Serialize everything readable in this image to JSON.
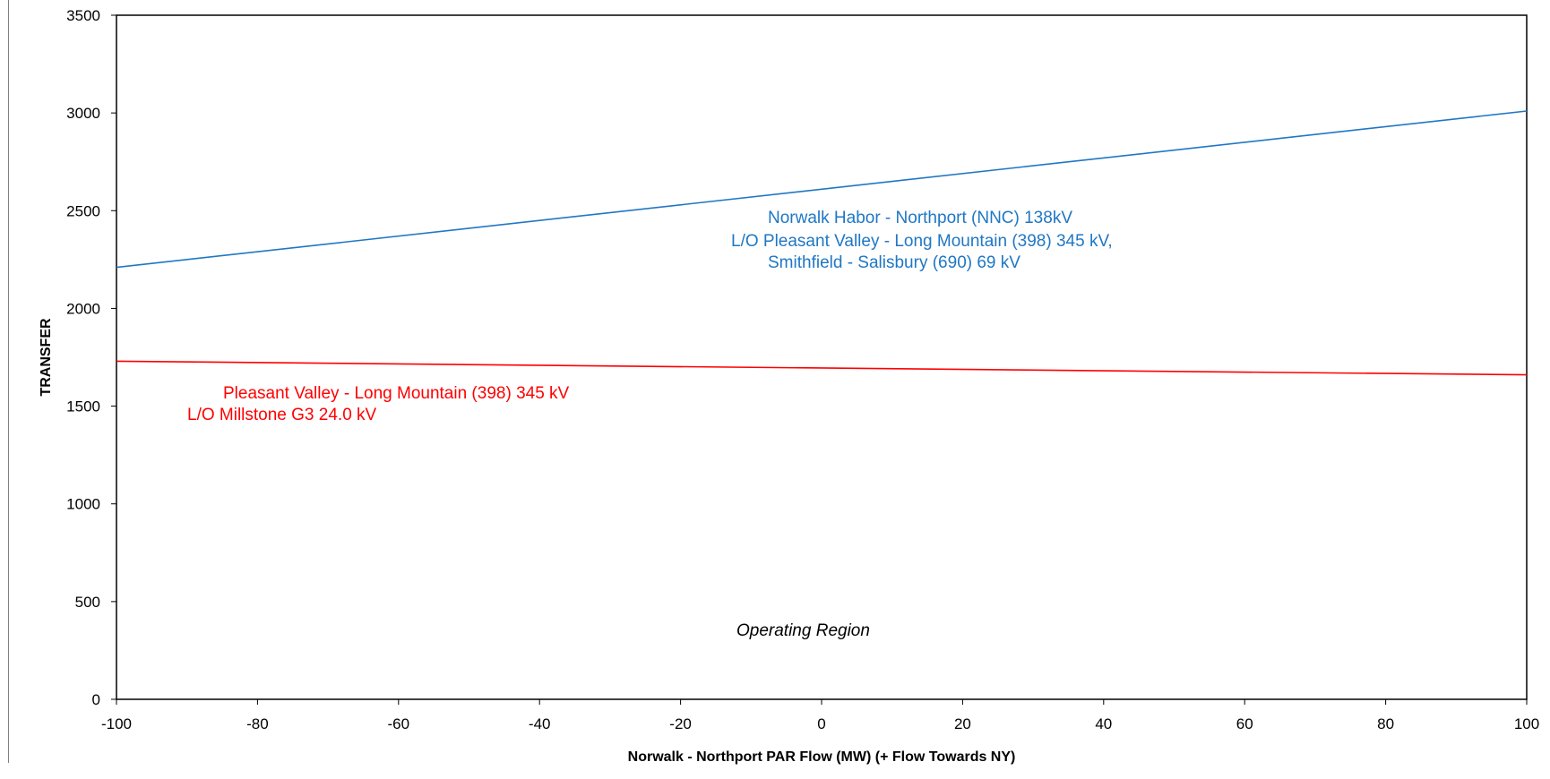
{
  "chart_data": {
    "type": "line",
    "title": "",
    "xlabel": "Norwalk - Northport PAR Flow (MW) (+ Flow Towards NY)",
    "ylabel": "TRANSFER",
    "xlim": [
      -100,
      100
    ],
    "ylim": [
      0,
      3500
    ],
    "xticks": [
      "-100",
      "-80",
      "-60",
      "-40",
      "-20",
      "0",
      "20",
      "40",
      "60",
      "80",
      "100"
    ],
    "yticks": [
      "0",
      "500",
      "1000",
      "1500",
      "2000",
      "2500",
      "3000",
      "3500"
    ],
    "grid": false,
    "legend": "none",
    "series": [
      {
        "color": "#1f77c4",
        "x": [
          -100,
          100
        ],
        "y": [
          2210,
          3010
        ]
      },
      {
        "color": "#ff0000",
        "x": [
          -100,
          100
        ],
        "y": [
          1730,
          1660
        ]
      }
    ],
    "annotations": [
      {
        "color": "#1f77c4",
        "italic": false,
        "lines": [
          "Norwalk Habor - Northport (NNC)  138kV",
          "L/O Pleasant  Valley - Long Mountain (398) 345 kV,",
          "Smithfield - Salisbury (690) 69 kV"
        ]
      },
      {
        "color": "#ff0000",
        "italic": false,
        "lines": [
          "Pleasant  Valley - Long Mountain (398) 345 kV",
          "L/O Millstone G3 24.0 kV"
        ]
      },
      {
        "color": "#000000",
        "italic": true,
        "lines": [
          "Operating Region"
        ]
      }
    ]
  }
}
